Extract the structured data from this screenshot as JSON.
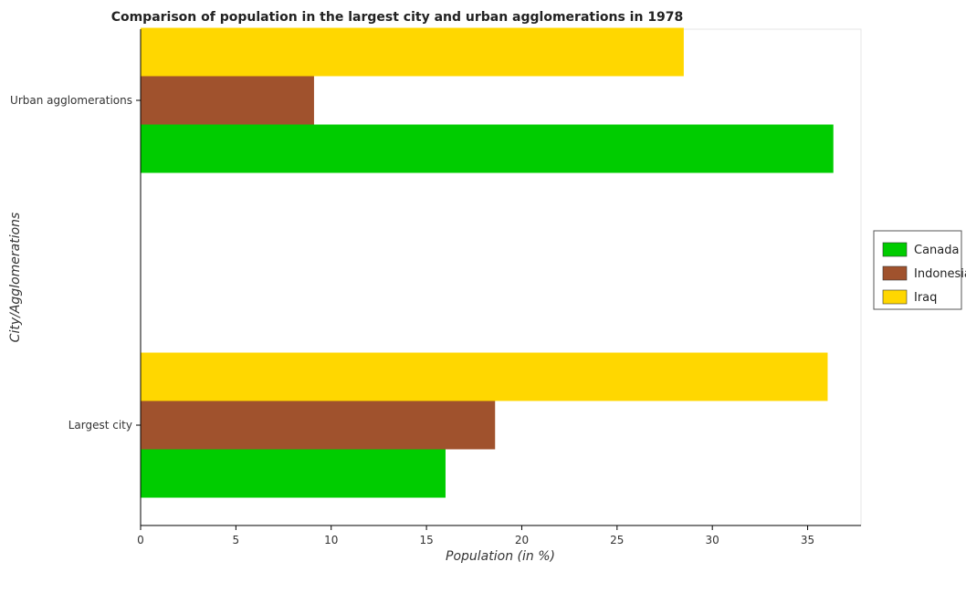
{
  "chart_data": {
    "type": "bar",
    "orientation": "horizontal",
    "title": "Comparison of population in the largest city and urban agglomerations in 1978",
    "xlabel": "Population (in %)",
    "ylabel": "City/Agglomerations",
    "categories": [
      "Largest city",
      "Urban agglomerations"
    ],
    "xlim": [
      0,
      37.8
    ],
    "xticks": [
      0,
      5,
      10,
      15,
      20,
      25,
      30,
      35
    ],
    "grid": false,
    "legend_position": "right",
    "series": [
      {
        "name": "Canada",
        "color": "#00cc00",
        "values": [
          16.0,
          36.35
        ]
      },
      {
        "name": "Indonesia",
        "color": "#a0522d",
        "values": [
          18.6,
          9.1
        ]
      },
      {
        "name": "Iraq",
        "color": "#ffd700",
        "values": [
          36.05,
          28.5
        ]
      }
    ]
  }
}
